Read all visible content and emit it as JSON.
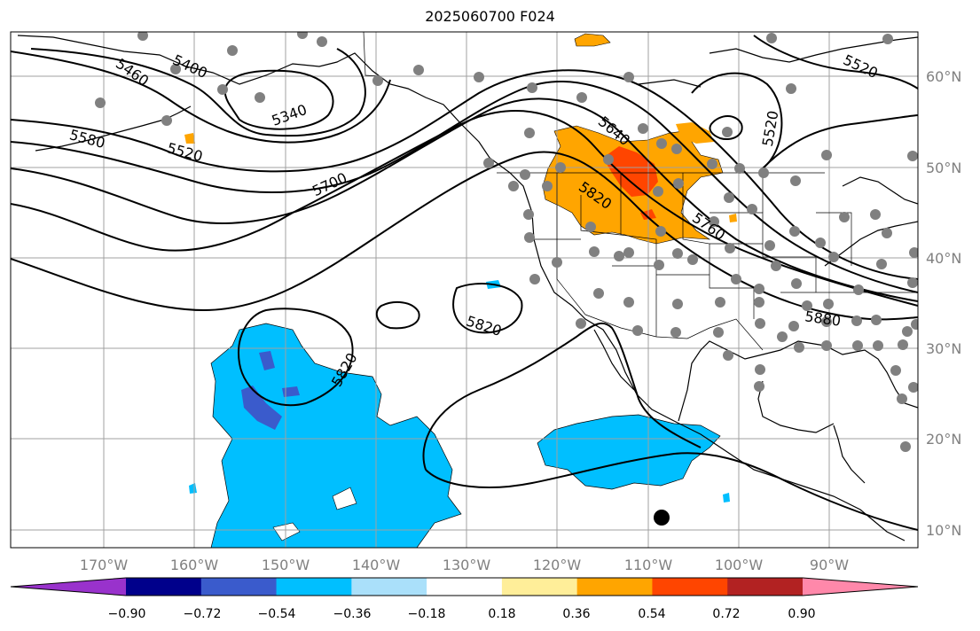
{
  "title": "2025060700 F024",
  "map": {
    "lon_labels": [
      "170°W",
      "160°W",
      "150°W",
      "140°W",
      "130°W",
      "120°W",
      "110°W",
      "100°W",
      "90°W"
    ],
    "lat_labels": [
      "60°N",
      "50°N",
      "40°N",
      "30°N",
      "20°N",
      "10°N"
    ],
    "contour_labels": [
      "5400",
      "5460",
      "5340",
      "5520",
      "5580",
      "5700",
      "5640",
      "5820",
      "5760",
      "5820",
      "5820",
      "5520",
      "5880"
    ],
    "tick_color": "#808080",
    "grid_color": "#a0a0a0"
  },
  "colorbar": {
    "colors": [
      "#9932cc",
      "#00008b",
      "#3a5bcc",
      "#00bfff",
      "#aae0fa",
      "#ffffff",
      "#ffee99",
      "#ffa500",
      "#ff4500",
      "#b22222",
      "#ff88aa"
    ],
    "labels": [
      "−0.90",
      "−0.72",
      "−0.54",
      "−0.36",
      "−0.18",
      "0.18",
      "0.36",
      "0.54",
      "0.72",
      "0.90"
    ]
  }
}
